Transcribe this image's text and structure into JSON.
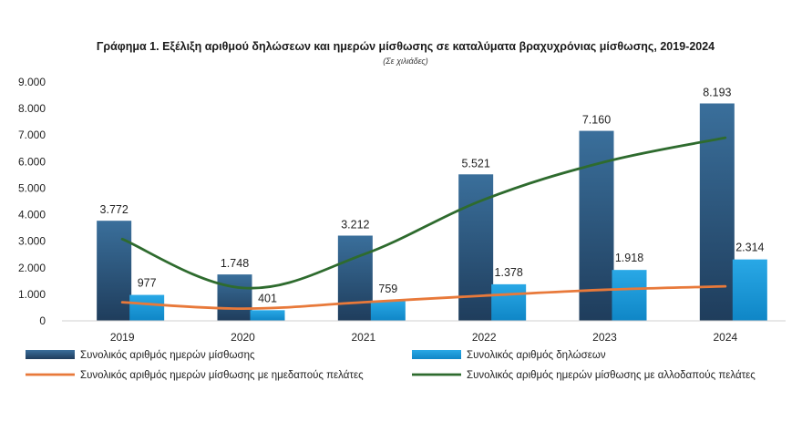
{
  "chart_data": {
    "type": "bar",
    "title": "Γράφημα 1. Εξέλιξη αριθμού δηλώσεων και ημερών μίσθωσης σε καταλύματα βραχυχρόνιας μίσθωσης, 2019-2024",
    "subtitle": "(Σε χιλιάδες)",
    "categories": [
      "2019",
      "2020",
      "2021",
      "2022",
      "2023",
      "2024"
    ],
    "ylim": [
      0,
      9000
    ],
    "yticks": [
      0,
      1000,
      2000,
      3000,
      4000,
      5000,
      6000,
      7000,
      8000,
      9000
    ],
    "ytick_labels": [
      "0",
      "1.000",
      "2.000",
      "3.000",
      "4.000",
      "5.000",
      "6.000",
      "7.000",
      "8.000",
      "9.000"
    ],
    "grid": false,
    "legend_position": "bottom",
    "series": [
      {
        "name": "Συνολικός αριθμός ημερών μίσθωσης",
        "kind": "bar",
        "color": "#2f5a80",
        "values": [
          3772,
          1748,
          3212,
          5521,
          7160,
          8193
        ],
        "labels": [
          "3.772",
          "1.748",
          "3.212",
          "5.521",
          "7.160",
          "8.193"
        ]
      },
      {
        "name": "Συνολικός αριθμός δηλώσεων",
        "kind": "bar",
        "color": "#1b9ad6",
        "values": [
          977,
          401,
          759,
          1378,
          1918,
          2314
        ],
        "labels": [
          "977",
          "401",
          "759",
          "1.378",
          "1.918",
          "2.314"
        ]
      },
      {
        "name": "Συνολικός αριθμός ημερών μίσθωσης με ημεδαπούς πελάτες",
        "kind": "line",
        "color": "#e8793a",
        "values": [
          700,
          460,
          700,
          950,
          1170,
          1300
        ]
      },
      {
        "name": "Συνολικός αριθμός ημερών μίσθωσης με αλλοδαπούς πελάτες",
        "kind": "line",
        "color": "#2e6b2e",
        "values": [
          3080,
          1240,
          2500,
          4570,
          5990,
          6900
        ]
      }
    ]
  }
}
